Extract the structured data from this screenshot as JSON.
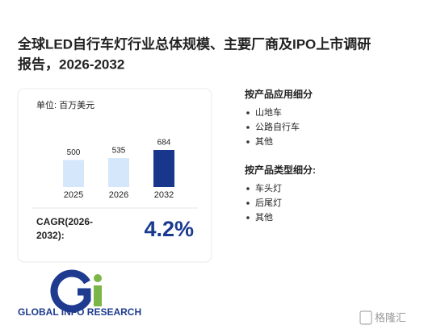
{
  "header": {
    "title_line1": "全球LED自行车灯行业总体规模、主要厂商及IPO上市调研",
    "title_line2": "报告，2026-2032"
  },
  "chart_data": {
    "type": "bar",
    "unit": "单位: 百万美元",
    "categories": [
      "2025",
      "2026",
      "2032"
    ],
    "values": [
      500,
      535,
      684
    ],
    "colors": [
      "#d5e7fa",
      "#d5e7fa",
      "#17368c"
    ]
  },
  "cagr": {
    "label_line1": "CAGR(2026-",
    "label_line2": "2032):",
    "value": "4.2%"
  },
  "segments": [
    {
      "title": "按产品应用细分",
      "items": [
        "山地车",
        "公路自行车",
        "其他"
      ]
    },
    {
      "title": "按产品类型细分:",
      "items": [
        "车头灯",
        "后尾灯",
        "其他"
      ]
    }
  ],
  "logo": {
    "text": "GLOBAL INFO RESEARCH"
  },
  "watermark": {
    "text": "格隆汇"
  }
}
